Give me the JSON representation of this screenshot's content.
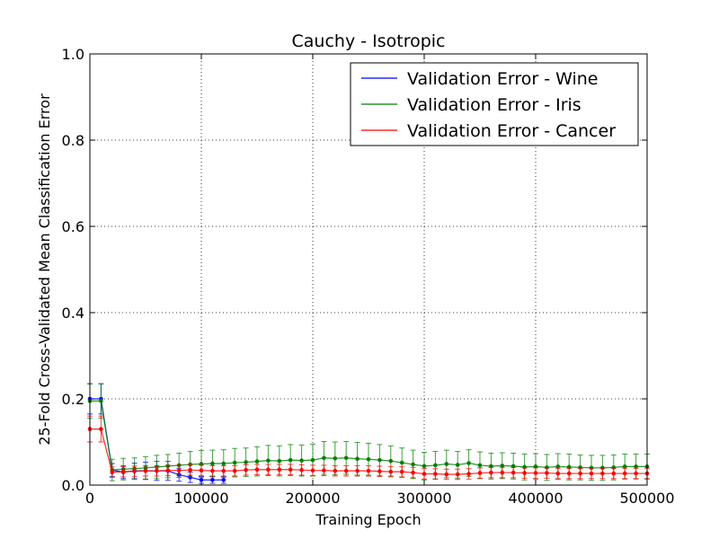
{
  "chart_data": {
    "type": "line",
    "title": "Cauchy - Isotropic",
    "xlabel": "Training Epoch",
    "ylabel": "25-Fold Cross-Validated Mean Classification Error",
    "xlim": [
      0,
      500000
    ],
    "ylim": [
      0.0,
      1.0
    ],
    "xticks": [
      0,
      100000,
      200000,
      300000,
      400000,
      500000
    ],
    "xtick_labels": [
      "0",
      "100000",
      "200000",
      "300000",
      "400000",
      "500000"
    ],
    "yticks": [
      0.0,
      0.2,
      0.4,
      0.6,
      0.8,
      1.0
    ],
    "ytick_labels": [
      "0.0",
      "0.2",
      "0.4",
      "0.6",
      "0.8",
      "1.0"
    ],
    "grid": true,
    "legend_position": "top-right",
    "series": [
      {
        "name": "Validation Error - Wine",
        "color": "#0000ff",
        "x": [
          0,
          10000,
          20000,
          30000,
          40000,
          50000,
          60000,
          70000,
          80000,
          90000,
          100000,
          110000,
          120000
        ],
        "y": [
          0.2,
          0.2,
          0.035,
          0.03,
          0.033,
          0.033,
          0.033,
          0.033,
          0.024,
          0.018,
          0.012,
          0.012,
          0.012
        ],
        "err": [
          0.035,
          0.035,
          0.015,
          0.015,
          0.018,
          0.02,
          0.022,
          0.022,
          0.015,
          0.012,
          0.008,
          0.008,
          0.008
        ]
      },
      {
        "name": "Validation Error - Iris",
        "color": "#008000",
        "x": [
          0,
          10000,
          20000,
          30000,
          40000,
          50000,
          60000,
          70000,
          80000,
          90000,
          100000,
          110000,
          120000,
          130000,
          140000,
          150000,
          160000,
          170000,
          180000,
          190000,
          200000,
          210000,
          220000,
          230000,
          240000,
          250000,
          260000,
          270000,
          280000,
          290000,
          300000,
          310000,
          320000,
          330000,
          340000,
          350000,
          360000,
          370000,
          380000,
          390000,
          400000,
          410000,
          420000,
          430000,
          440000,
          450000,
          460000,
          470000,
          480000,
          490000,
          500000
        ],
        "y": [
          0.195,
          0.195,
          0.035,
          0.037,
          0.038,
          0.04,
          0.042,
          0.044,
          0.046,
          0.048,
          0.049,
          0.05,
          0.05,
          0.052,
          0.053,
          0.055,
          0.057,
          0.056,
          0.058,
          0.057,
          0.058,
          0.063,
          0.062,
          0.063,
          0.061,
          0.06,
          0.058,
          0.056,
          0.052,
          0.048,
          0.044,
          0.046,
          0.049,
          0.047,
          0.051,
          0.046,
          0.044,
          0.045,
          0.044,
          0.042,
          0.043,
          0.041,
          0.043,
          0.042,
          0.041,
          0.04,
          0.04,
          0.041,
          0.043,
          0.043,
          0.043
        ],
        "err": [
          0.04,
          0.04,
          0.025,
          0.025,
          0.025,
          0.026,
          0.027,
          0.027,
          0.028,
          0.03,
          0.031,
          0.031,
          0.032,
          0.033,
          0.033,
          0.034,
          0.035,
          0.035,
          0.036,
          0.036,
          0.037,
          0.038,
          0.038,
          0.038,
          0.038,
          0.037,
          0.036,
          0.035,
          0.034,
          0.033,
          0.032,
          0.032,
          0.032,
          0.031,
          0.031,
          0.031,
          0.03,
          0.03,
          0.03,
          0.03,
          0.03,
          0.03,
          0.03,
          0.03,
          0.029,
          0.029,
          0.029,
          0.029,
          0.029,
          0.029,
          0.029
        ]
      },
      {
        "name": "Validation Error - Cancer",
        "color": "#ff0000",
        "x": [
          0,
          10000,
          20000,
          30000,
          40000,
          50000,
          60000,
          70000,
          80000,
          90000,
          100000,
          110000,
          120000,
          130000,
          140000,
          150000,
          160000,
          170000,
          180000,
          190000,
          200000,
          210000,
          220000,
          230000,
          240000,
          250000,
          260000,
          270000,
          280000,
          290000,
          300000,
          310000,
          320000,
          330000,
          340000,
          350000,
          360000,
          370000,
          380000,
          390000,
          400000,
          410000,
          420000,
          430000,
          440000,
          450000,
          460000,
          470000,
          480000,
          490000,
          500000
        ],
        "y": [
          0.13,
          0.13,
          0.03,
          0.031,
          0.032,
          0.033,
          0.033,
          0.034,
          0.034,
          0.035,
          0.034,
          0.033,
          0.033,
          0.033,
          0.035,
          0.036,
          0.036,
          0.036,
          0.036,
          0.035,
          0.034,
          0.034,
          0.033,
          0.033,
          0.033,
          0.033,
          0.032,
          0.031,
          0.031,
          0.029,
          0.026,
          0.026,
          0.025,
          0.025,
          0.026,
          0.028,
          0.029,
          0.029,
          0.029,
          0.028,
          0.028,
          0.028,
          0.027,
          0.027,
          0.027,
          0.027,
          0.027,
          0.027,
          0.027,
          0.027,
          0.027
        ],
        "err": [
          0.03,
          0.03,
          0.012,
          0.012,
          0.012,
          0.012,
          0.012,
          0.012,
          0.012,
          0.012,
          0.012,
          0.012,
          0.012,
          0.012,
          0.012,
          0.012,
          0.012,
          0.012,
          0.012,
          0.012,
          0.012,
          0.012,
          0.012,
          0.012,
          0.012,
          0.012,
          0.012,
          0.012,
          0.012,
          0.012,
          0.012,
          0.012,
          0.012,
          0.012,
          0.012,
          0.012,
          0.012,
          0.012,
          0.012,
          0.012,
          0.012,
          0.012,
          0.012,
          0.012,
          0.012,
          0.012,
          0.012,
          0.012,
          0.012,
          0.012,
          0.012
        ]
      }
    ]
  }
}
